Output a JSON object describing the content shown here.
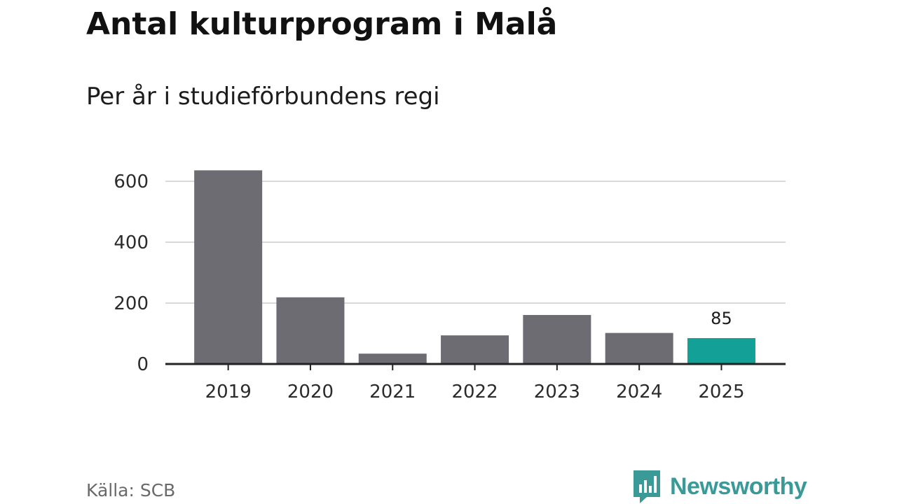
{
  "header": {
    "title": "Antal kulturprogram i Malå",
    "subtitle": "Per år i studieförbundens regi"
  },
  "footer": {
    "source": "Källa: SCB",
    "brand": "Newsworthy"
  },
  "colors": {
    "bar": "#6d6c72",
    "highlight": "#13a096",
    "grid": "#d9d9d9",
    "axis": "#222222",
    "tick_text": "#2b2b2b",
    "brand": "#3a9a97"
  },
  "chart_data": {
    "type": "bar",
    "title": "Antal kulturprogram i Malå",
    "subtitle": "Per år i studieförbundens regi",
    "categories": [
      "2019",
      "2020",
      "2021",
      "2022",
      "2023",
      "2024",
      "2025"
    ],
    "values": [
      636,
      219,
      34,
      94,
      161,
      102,
      85
    ],
    "highlight_index": 6,
    "data_labels": [
      {
        "index": 6,
        "text": "85"
      }
    ],
    "yticks": [
      0,
      200,
      400,
      600
    ],
    "ylim": [
      0,
      640
    ],
    "grid": true,
    "legend": "none"
  }
}
